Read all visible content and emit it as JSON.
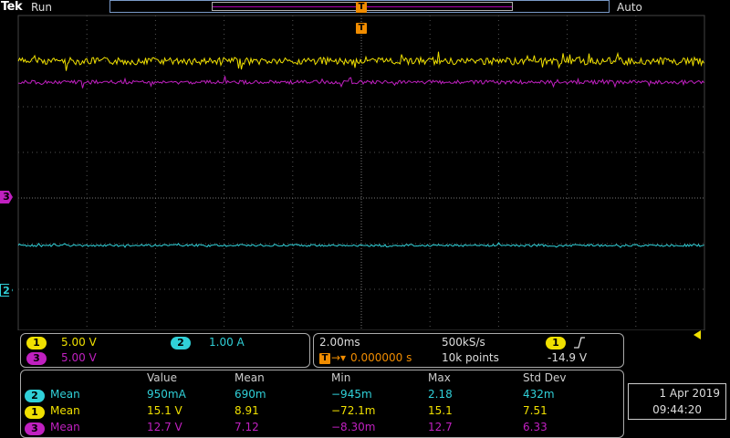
{
  "header": {
    "logo": "Tek",
    "run_state": "Run",
    "trigger_mode": "Auto",
    "trigger_marker": "T"
  },
  "channel_markers": {
    "ch3": "3",
    "ch2": "2"
  },
  "channels": [
    {
      "id": "1",
      "scale": "5.00 V",
      "color": "#f0e000"
    },
    {
      "id": "2",
      "scale": "1.00 A",
      "color": "#30d0d8"
    },
    {
      "id": "3",
      "scale": "5.00 V",
      "color": "#c020c0"
    }
  ],
  "timebase": {
    "horizontal_scale": "2.00ms",
    "sample_rate": "500kS/s",
    "position": "0.000000 s",
    "record_length": "10k points"
  },
  "trigger": {
    "source": "1",
    "slope_icon": "rising-edge",
    "level": "-14.9 V"
  },
  "measurements": {
    "headers": [
      "Value",
      "Mean",
      "Min",
      "Max",
      "Std Dev"
    ],
    "rows": [
      {
        "ch": "2",
        "type": "Mean",
        "value": "950mA",
        "mean": "690m",
        "min": "−945m",
        "max": "2.18",
        "std": "432m"
      },
      {
        "ch": "1",
        "type": "Mean",
        "value": "15.1 V",
        "mean": "8.91",
        "min": "−72.1m",
        "max": "15.1",
        "std": "7.51"
      },
      {
        "ch": "3",
        "type": "Mean",
        "value": "12.7 V",
        "mean": "7.12",
        "min": "−8.30m",
        "max": "12.7",
        "std": "6.33"
      }
    ]
  },
  "datetime": {
    "date": "1 Apr  2019",
    "time": "09:44:20"
  }
}
